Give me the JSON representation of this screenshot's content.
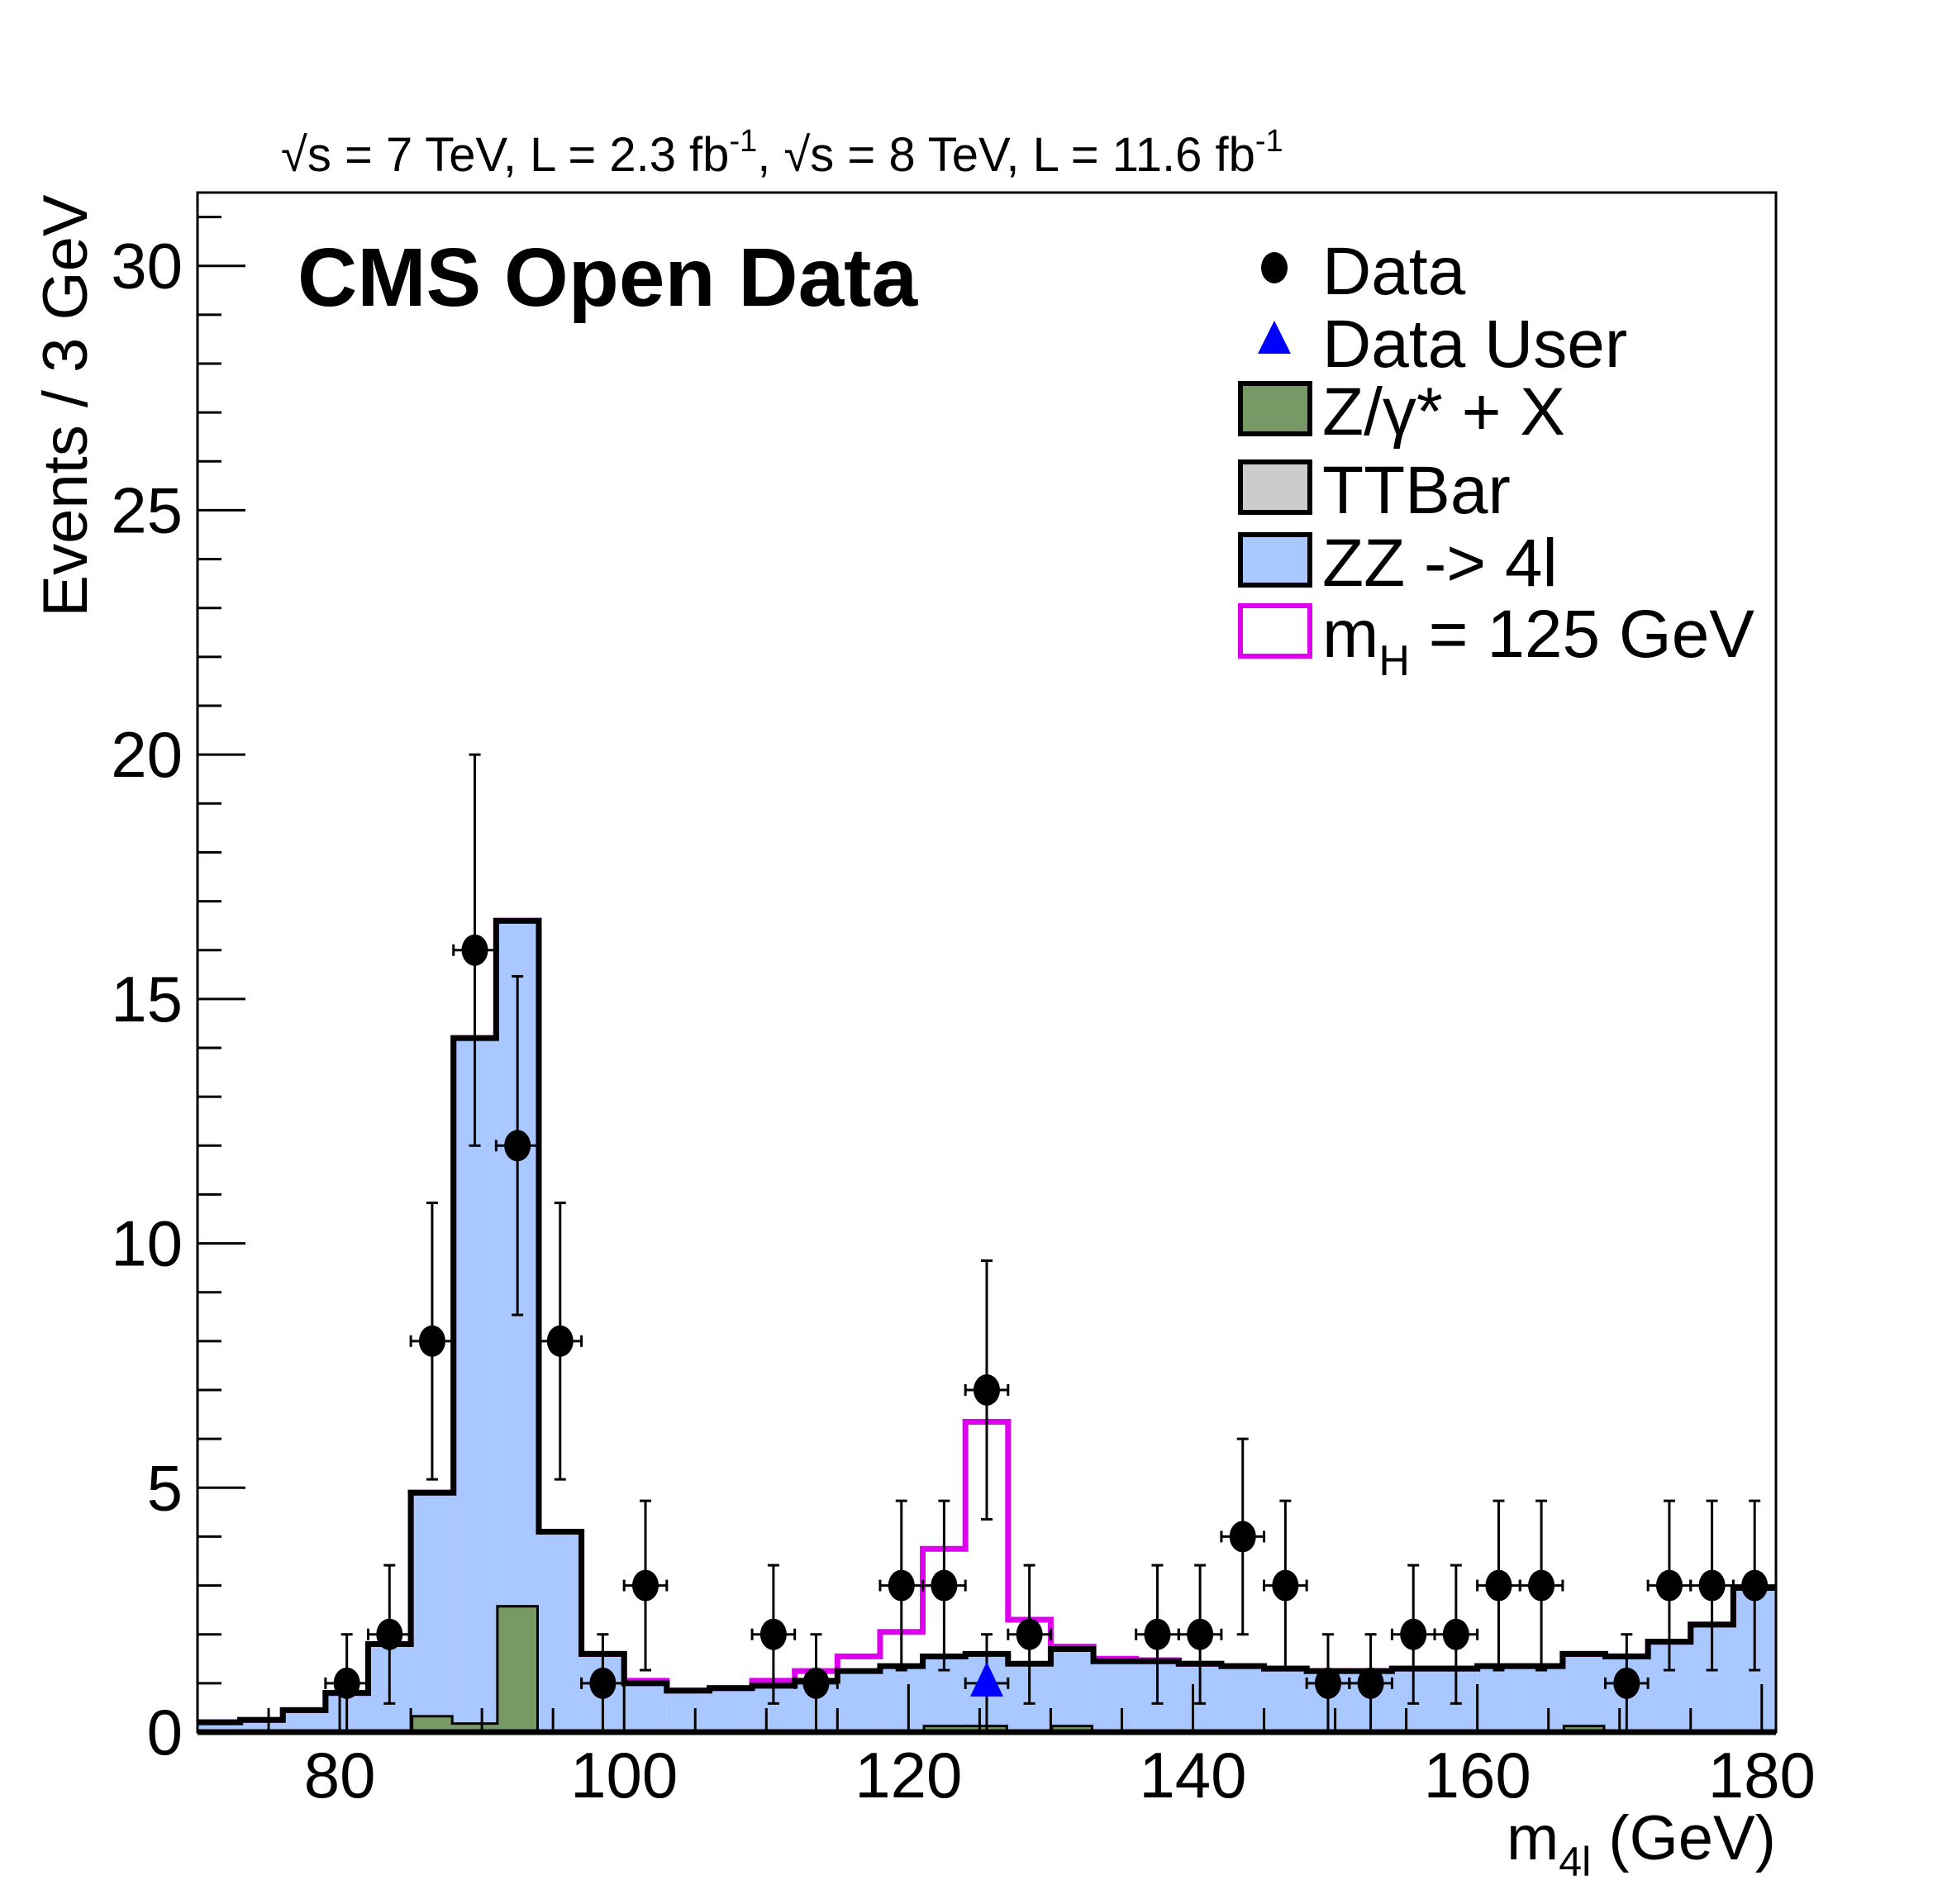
{
  "chart_data": {
    "type": "bar",
    "subtitle_parts": {
      "sqrt": "√s",
      "p1": " = 7 TeV, L = 2.3 fb",
      "sup1": "-1",
      "p2": ", ",
      "p3": " = 8 TeV, L = 11.6 fb",
      "sup2": "-1"
    },
    "title": "CMS Open Data",
    "xlabel": {
      "main": "m",
      "sub": "4l",
      "rest": " (GeV)"
    },
    "ylabel": "Events / 3 GeV",
    "xlim": [
      70,
      181
    ],
    "ylim": [
      0,
      31.5
    ],
    "xticks": [
      80,
      100,
      120,
      140,
      160,
      180
    ],
    "yticks": [
      0,
      5,
      10,
      15,
      20,
      25,
      30
    ],
    "bin_width": 3,
    "bin_low_edges": [
      70,
      73,
      76,
      79,
      82,
      85,
      88,
      91,
      94,
      97,
      100,
      103,
      106,
      109,
      112,
      115,
      118,
      121,
      124,
      127,
      130,
      133,
      136,
      139,
      142,
      145,
      148,
      151,
      154,
      157,
      160,
      163,
      166,
      169,
      172,
      175,
      178
    ],
    "stack": [
      {
        "name": "Z/γ* + X",
        "color": "#779966",
        "values": [
          0,
          0,
          0,
          0,
          0,
          0.35,
          0.2,
          2.6,
          0,
          0,
          0,
          0,
          0,
          0,
          0,
          0,
          0,
          0.15,
          0.15,
          0,
          0.15,
          0,
          0,
          0,
          0,
          0,
          0,
          0,
          0,
          0,
          0,
          0,
          0.15,
          0,
          0,
          0,
          0
        ]
      },
      {
        "name": "TTBar",
        "color": "#cccccc",
        "values": [
          0,
          0,
          0,
          0,
          0,
          0,
          0,
          0,
          0,
          0,
          0,
          0,
          0,
          0,
          0,
          0,
          0,
          0,
          0,
          0,
          0,
          0,
          0,
          0,
          0,
          0,
          0,
          0,
          0,
          0,
          0,
          0,
          0,
          0,
          0,
          0,
          0
        ]
      },
      {
        "name": "ZZ -> 4l",
        "color": "#a8c8ff",
        "values": [
          0.2,
          0.25,
          0.45,
          0.8,
          1.8,
          4.55,
          14.0,
          14.0,
          4.1,
          1.6,
          1.0,
          0.85,
          0.9,
          0.95,
          1.05,
          1.25,
          1.35,
          1.4,
          1.45,
          1.4,
          1.55,
          1.45,
          1.45,
          1.4,
          1.35,
          1.3,
          1.25,
          1.25,
          1.3,
          1.3,
          1.35,
          1.35,
          1.45,
          1.55,
          1.85,
          2.2,
          2.95
        ]
      }
    ],
    "signal": {
      "name": "m_H = 125 GeV",
      "color": "#dd00ee",
      "values": [
        0,
        0,
        0,
        0,
        0,
        0,
        0,
        0,
        0,
        0,
        0.05,
        0,
        0,
        0.1,
        0.2,
        0.3,
        0.7,
        2.2,
        4.75,
        0.9,
        0.05,
        0.05,
        0.02,
        0,
        0,
        0,
        0,
        0,
        0,
        0,
        0,
        0,
        0,
        0,
        0,
        0,
        0
      ]
    },
    "data": {
      "name": "Data",
      "x": [
        80.5,
        83.5,
        86.5,
        89.5,
        92.5,
        95.5,
        98.5,
        101.5,
        110.5,
        113.5,
        119.5,
        122.5,
        125.5,
        128.5,
        137.5,
        140.5,
        143.5,
        146.5,
        149.5,
        152.5,
        155.5,
        158.5,
        161.5,
        164.5,
        170.5,
        173.5,
        176.5,
        179.5
      ],
      "y": [
        1,
        2,
        8,
        16,
        12,
        8,
        1,
        3,
        2,
        1,
        3,
        3,
        7,
        2,
        2,
        2,
        4,
        3,
        1,
        1,
        2,
        2,
        3,
        3,
        1,
        3,
        3,
        3
      ]
    },
    "data_user": {
      "name": "Data User",
      "color": "#0000ff",
      "x": [
        125.5
      ],
      "y": [
        1
      ]
    },
    "legend": {
      "placement": "top-right",
      "entries": [
        {
          "label": "Data",
          "marker": "circle"
        },
        {
          "label": "Data User",
          "marker": "triangle"
        },
        {
          "label": "Z/γ* + X",
          "marker": "box"
        },
        {
          "label": "TTBar",
          "marker": "box"
        },
        {
          "label": "ZZ -> 4l",
          "marker": "box"
        },
        {
          "label_main": "m",
          "label_sub": "H",
          "label_rest": " = 125 GeV",
          "marker": "line-box"
        }
      ]
    }
  }
}
